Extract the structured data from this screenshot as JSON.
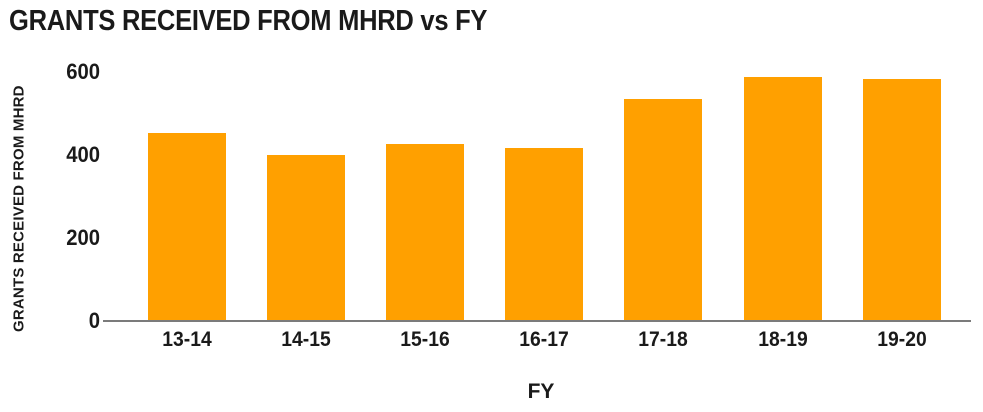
{
  "chart_data": {
    "type": "bar",
    "title": "GRANTS RECEIVED FROM MHRD vs FY",
    "xlabel": "FY",
    "ylabel": "GRANTS RECEIVED FROM MHRD",
    "categories": [
      "13-14",
      "14-15",
      "15-16",
      "16-17",
      "17-18",
      "18-19",
      "19-20"
    ],
    "values": [
      450,
      398,
      425,
      415,
      532,
      586,
      580
    ],
    "yticks": [
      0,
      200,
      400,
      600
    ],
    "ylim": [
      0,
      600
    ],
    "grid": false,
    "legend": "none",
    "bar_color": "#FFA000",
    "axis_color": "#7B7B7B",
    "text_color": "#1A1A1A"
  }
}
